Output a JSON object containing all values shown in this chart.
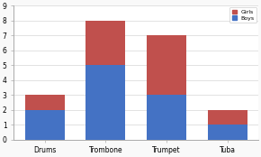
{
  "categories": [
    "Drums",
    "Trombone",
    "Trumpet",
    "Tuba"
  ],
  "boys": [
    2,
    5,
    3,
    1
  ],
  "girls": [
    1,
    3,
    4,
    1
  ],
  "boys_color": "#4472c4",
  "girls_color": "#c0504d",
  "ylim": [
    0,
    9
  ],
  "yticks": [
    0,
    1,
    2,
    3,
    4,
    5,
    6,
    7,
    8,
    9
  ],
  "background_color": "#f9f9f9",
  "plot_bg_color": "#ffffff",
  "grid_color": "#dddddd",
  "bar_width": 0.65
}
